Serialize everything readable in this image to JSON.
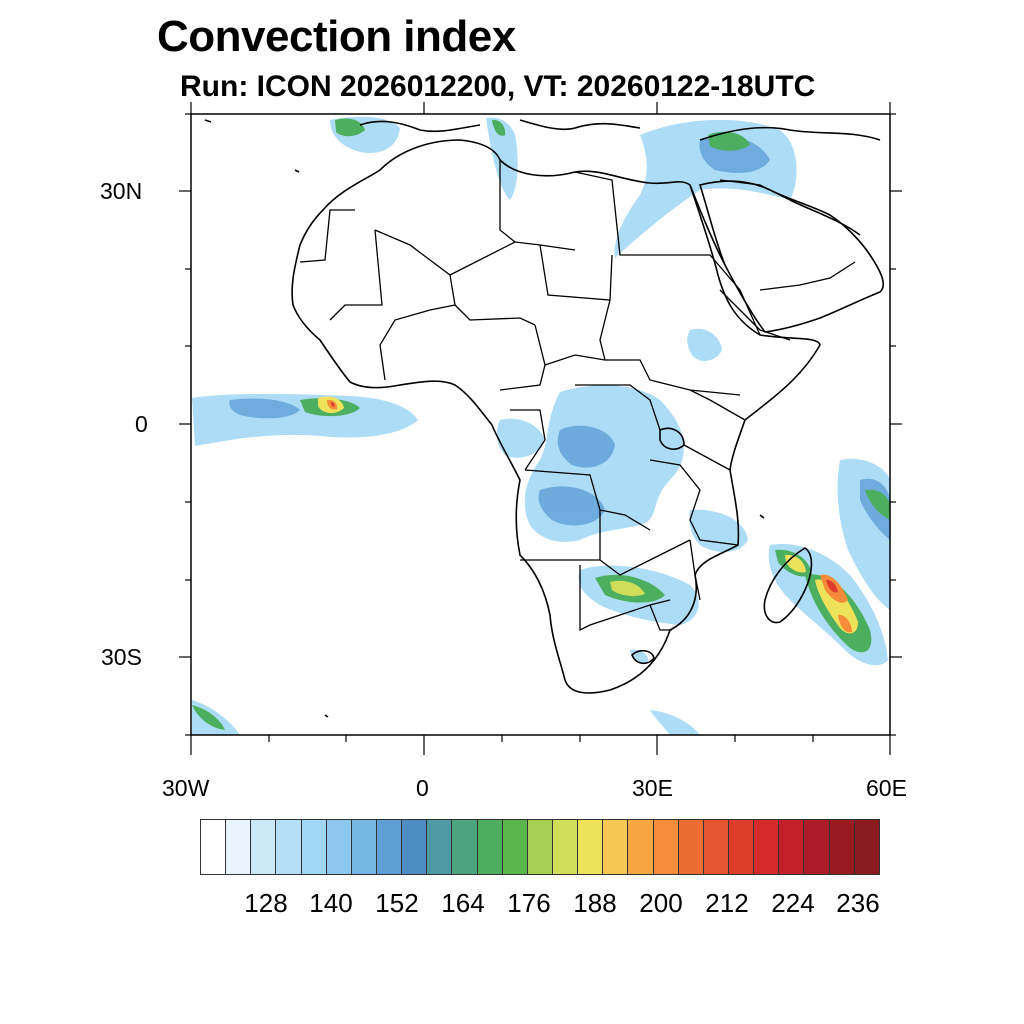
{
  "title": "Convection index",
  "subtitle": "Run: ICON 2026012200,  VT: 20260122-18UTC",
  "axes": {
    "lat_labels": [
      "30N",
      "0",
      "30S"
    ],
    "lon_labels": [
      "30W",
      "0",
      "30E",
      "60E"
    ]
  },
  "colorbar": {
    "colors": [
      "#ffffff",
      "#e8f4fb",
      "#cbe8f7",
      "#b3def5",
      "#9fd6f5",
      "#8cc8ee",
      "#77b6e4",
      "#5f9fd6",
      "#4f8cc4",
      "#4d9aa5",
      "#4ca47e",
      "#4caf5f",
      "#58b64b",
      "#a6cf52",
      "#cfdd58",
      "#eee25b",
      "#f8c652",
      "#f6a743",
      "#f48c3a",
      "#ec6d33",
      "#e55531",
      "#de3d2e",
      "#d42b2c",
      "#c21f2b",
      "#ae1b28",
      "#9a1a22",
      "#8a1a1e"
    ],
    "labels": [
      "128",
      "140",
      "152",
      "164",
      "176",
      "188",
      "200",
      "212",
      "224",
      "236"
    ]
  }
}
